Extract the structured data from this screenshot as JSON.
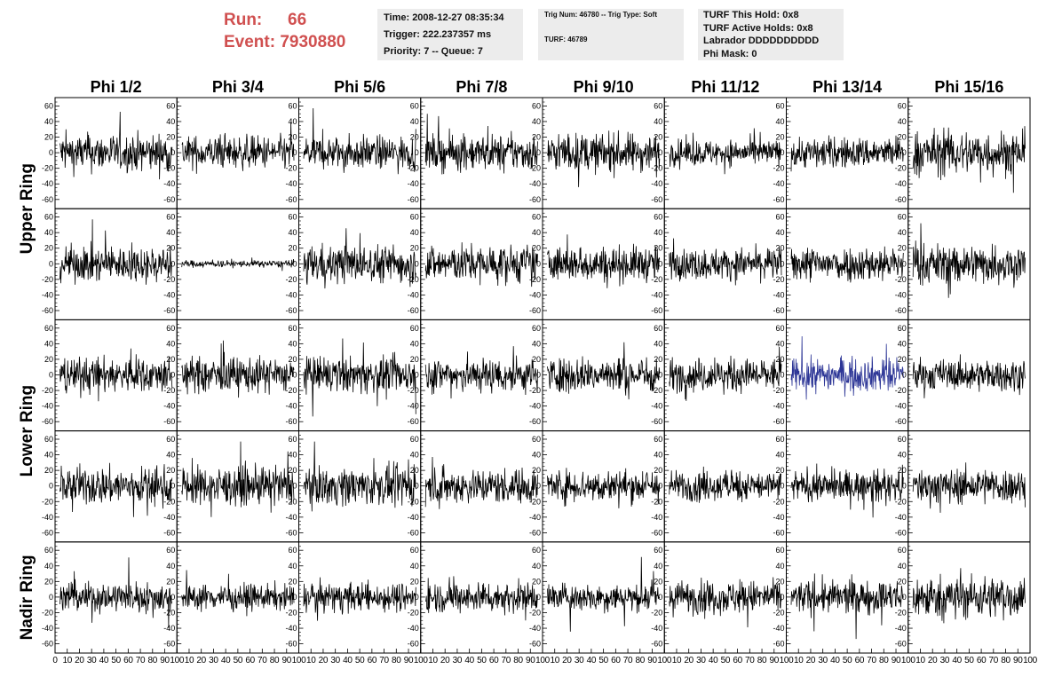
{
  "header": {
    "run_label": "Run:",
    "run_value": "66",
    "event_label": "Event:",
    "event_value": "7930880"
  },
  "info_box_1": {
    "time": "Time: 2008-12-27 08:35:34",
    "trigger": "Trigger: 222.237357 ms",
    "priority": "Priority: 7 -- Queue: 7"
  },
  "info_box_2": {
    "trig": "Trig Num: 46780 -- Trig Type: Soft",
    "turf": "TURF: 46789"
  },
  "info_box_3": {
    "this_hold": "TURF This Hold: 0x8",
    "active_holds": "TURF Active Holds: 0x8",
    "labrador": "Labrador DDDDDDDDDD",
    "phi_mask": "Phi Mask: 0"
  },
  "colors": {
    "trace": "#000000",
    "highlight_trace": "#2c3596",
    "run_text": "#d05050",
    "info_bg": "#ececec"
  },
  "chart_data": {
    "type": "line",
    "columns": [
      "Phi 1/2",
      "Phi 3/4",
      "Phi 5/6",
      "Phi 7/8",
      "Phi 9/10",
      "Phi 11/12",
      "Phi 13/14",
      "Phi 15/16"
    ],
    "ring_labels": [
      "Upper Ring",
      "Lower Ring",
      "Nadir Ring"
    ],
    "rows": 5,
    "xlim": [
      0,
      100
    ],
    "ylim": [
      -65,
      65
    ],
    "y_ticks": [
      -60,
      -40,
      -20,
      0,
      20,
      40,
      60
    ],
    "x_ticks": [
      0,
      10,
      20,
      30,
      40,
      50,
      60,
      70,
      80,
      90,
      100
    ],
    "samples_per_trace": 260,
    "amplitude_grid": [
      [
        16,
        14,
        14,
        15,
        16,
        11,
        13,
        19
      ],
      [
        15,
        3,
        16,
        16,
        15,
        13,
        15,
        17
      ],
      [
        15,
        15,
        15,
        15,
        15,
        14,
        14,
        13
      ],
      [
        16,
        16,
        16,
        15,
        14,
        13,
        13,
        15
      ],
      [
        13,
        11,
        12,
        13,
        12,
        14,
        14,
        18
      ]
    ],
    "highlight": {
      "row": 2,
      "col": 6
    }
  }
}
